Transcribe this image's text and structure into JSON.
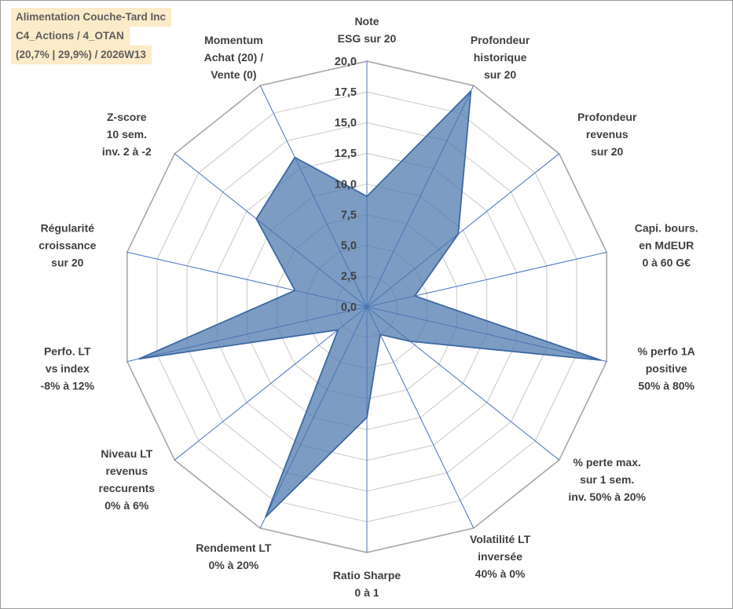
{
  "title_box": {
    "bg": "#fcebc8",
    "lines": [
      "Alimentation Couche-Tard Inc",
      "C4_Actions / 4_OTAN",
      "(20,7% | 29,9%) / 2026W13"
    ]
  },
  "chart_data": {
    "type": "radar",
    "title": "Alimentation Couche-Tard Inc — C4_Actions / 4_OTAN — (20,7% | 29,9%) / 2026W13",
    "axis_range": {
      "min": 0,
      "max": 20,
      "step": 2.5
    },
    "tick_labels": [
      "0,0",
      "2,5",
      "5,0",
      "7,5",
      "10,0",
      "12,5",
      "15,0",
      "17,5",
      "20,0"
    ],
    "categories": [
      {
        "label": "Note ESG sur 20",
        "lines": [
          "Note",
          "ESG sur 20"
        ]
      },
      {
        "label": "Profondeur historique sur 20",
        "lines": [
          "Profondeur",
          "historique",
          "sur 20"
        ]
      },
      {
        "label": "Profondeur revenus sur 20",
        "lines": [
          "Profondeur",
          "revenus",
          "sur 20"
        ]
      },
      {
        "label": "Capi. bours. en MdEUR 0 à 60 G€",
        "lines": [
          "Capi. bours.",
          "en MdEUR",
          "0 à 60 G€"
        ]
      },
      {
        "label": "% perfo 1A positive 50% à 80%",
        "lines": [
          "% perfo 1A",
          "positive",
          "50% à 80%"
        ]
      },
      {
        "label": "% perte max. sur 1 sem. inv. 50% à 20%",
        "lines": [
          "% perte max.",
          "sur 1 sem.",
          "inv. 50% à 20%"
        ]
      },
      {
        "label": "Volatilité LT inversée 40% à 0%",
        "lines": [
          "Volatilité LT",
          "inversée",
          "40% à 0%"
        ]
      },
      {
        "label": "Ratio Sharpe 0 à 1",
        "lines": [
          "Ratio Sharpe",
          "0 à 1"
        ]
      },
      {
        "label": "Rendement LT 0% à 20%",
        "lines": [
          "Rendement LT",
          "0% à 20%"
        ]
      },
      {
        "label": "Niveau LT revenus reccurents 0% à 6%",
        "lines": [
          "Niveau LT",
          "revenus",
          "reccurents",
          "0% à 6%"
        ]
      },
      {
        "label": "Perfo. LT vs index -8% à 12%",
        "lines": [
          "Perfo. LT",
          "vs index",
          "-8% à 12%"
        ]
      },
      {
        "label": "Régularité croissance sur 20",
        "lines": [
          "Régularité",
          "croissance",
          "sur 20"
        ]
      },
      {
        "label": "Z-score 10 sem. inv. 2 à -2",
        "lines": [
          "Z-score",
          "10 sem.",
          "inv. 2 à -2"
        ]
      },
      {
        "label": "Momentum Achat (20) / Vente (0)",
        "lines": [
          "Momentum",
          "Achat (20) /",
          "Vente (0)"
        ]
      }
    ],
    "series": [
      {
        "name": "Alimentation Couche-Tard Inc",
        "values": [
          9,
          19.5,
          9.5,
          4,
          19.5,
          4.5,
          2.5,
          9,
          19,
          3,
          19,
          6,
          11.5,
          13.5
        ],
        "fill": "#4a76ad",
        "fill_opacity": 0.72,
        "stroke": "#3d69a1"
      }
    ],
    "grid": {
      "spoke_color": "#4472c4",
      "ring_color": "#c8c8c8",
      "outer_ring_color": "#ababab"
    },
    "layout_hints": {
      "start": "top",
      "direction": "clockwise",
      "legend": "none",
      "tick_labels_along": "top-axis"
    }
  }
}
